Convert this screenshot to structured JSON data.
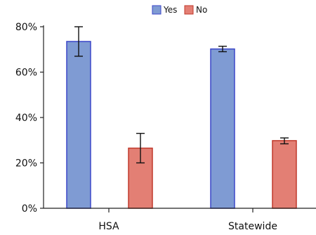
{
  "chart_data": {
    "type": "bar",
    "categories": [
      "HSA",
      "Statewide"
    ],
    "series": [
      {
        "name": "Yes",
        "values": [
          73.5,
          70.2
        ],
        "err_low": [
          67.0,
          69.0
        ],
        "err_high": [
          80.0,
          71.4
        ],
        "fill": "#7f9bd3",
        "stroke": "#3b46c8"
      },
      {
        "name": "No",
        "values": [
          26.5,
          29.8
        ],
        "err_low": [
          20.0,
          28.4
        ],
        "err_high": [
          33.0,
          31.0
        ],
        "fill": "#e37f74",
        "stroke": "#c0392b"
      }
    ],
    "ylim": [
      0,
      80
    ],
    "yticks": [
      0,
      20,
      40,
      60,
      80
    ],
    "ytick_labels": [
      "0%",
      "20%",
      "40%",
      "60%",
      "80%"
    ],
    "legend_position": "top-center",
    "grid": false,
    "title": "",
    "xlabel": "",
    "ylabel": ""
  }
}
